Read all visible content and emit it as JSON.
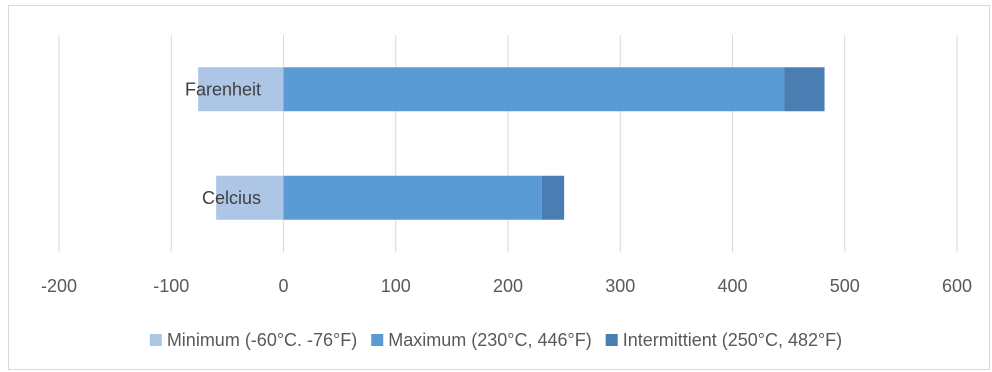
{
  "chart_data": {
    "type": "bar",
    "orientation": "horizontal",
    "stacked": true,
    "categories": [
      "Celcius",
      "Farenheit"
    ],
    "series": [
      {
        "name": "Minimum (-60°C. -76°F)",
        "values": [
          -60,
          -76
        ],
        "color": "#adc6e6"
      },
      {
        "name": "Maximum (230°C, 446°F)",
        "values": [
          230,
          446
        ],
        "color": "#5b9bd5"
      },
      {
        "name": "Intermittient (250°C, 482°F)",
        "values": [
          20,
          36
        ],
        "color": "#4a7eb3"
      }
    ],
    "xlim": [
      -200,
      600
    ],
    "xticks": [
      -200,
      -100,
      0,
      100,
      200,
      300,
      400,
      500,
      600
    ],
    "xtick_labels": [
      "-200",
      "-100",
      "0",
      "100",
      "200",
      "300",
      "400",
      "500",
      "600"
    ],
    "grid": true,
    "legend_position": "bottom",
    "title": "",
    "xlabel": "",
    "ylabel": ""
  }
}
